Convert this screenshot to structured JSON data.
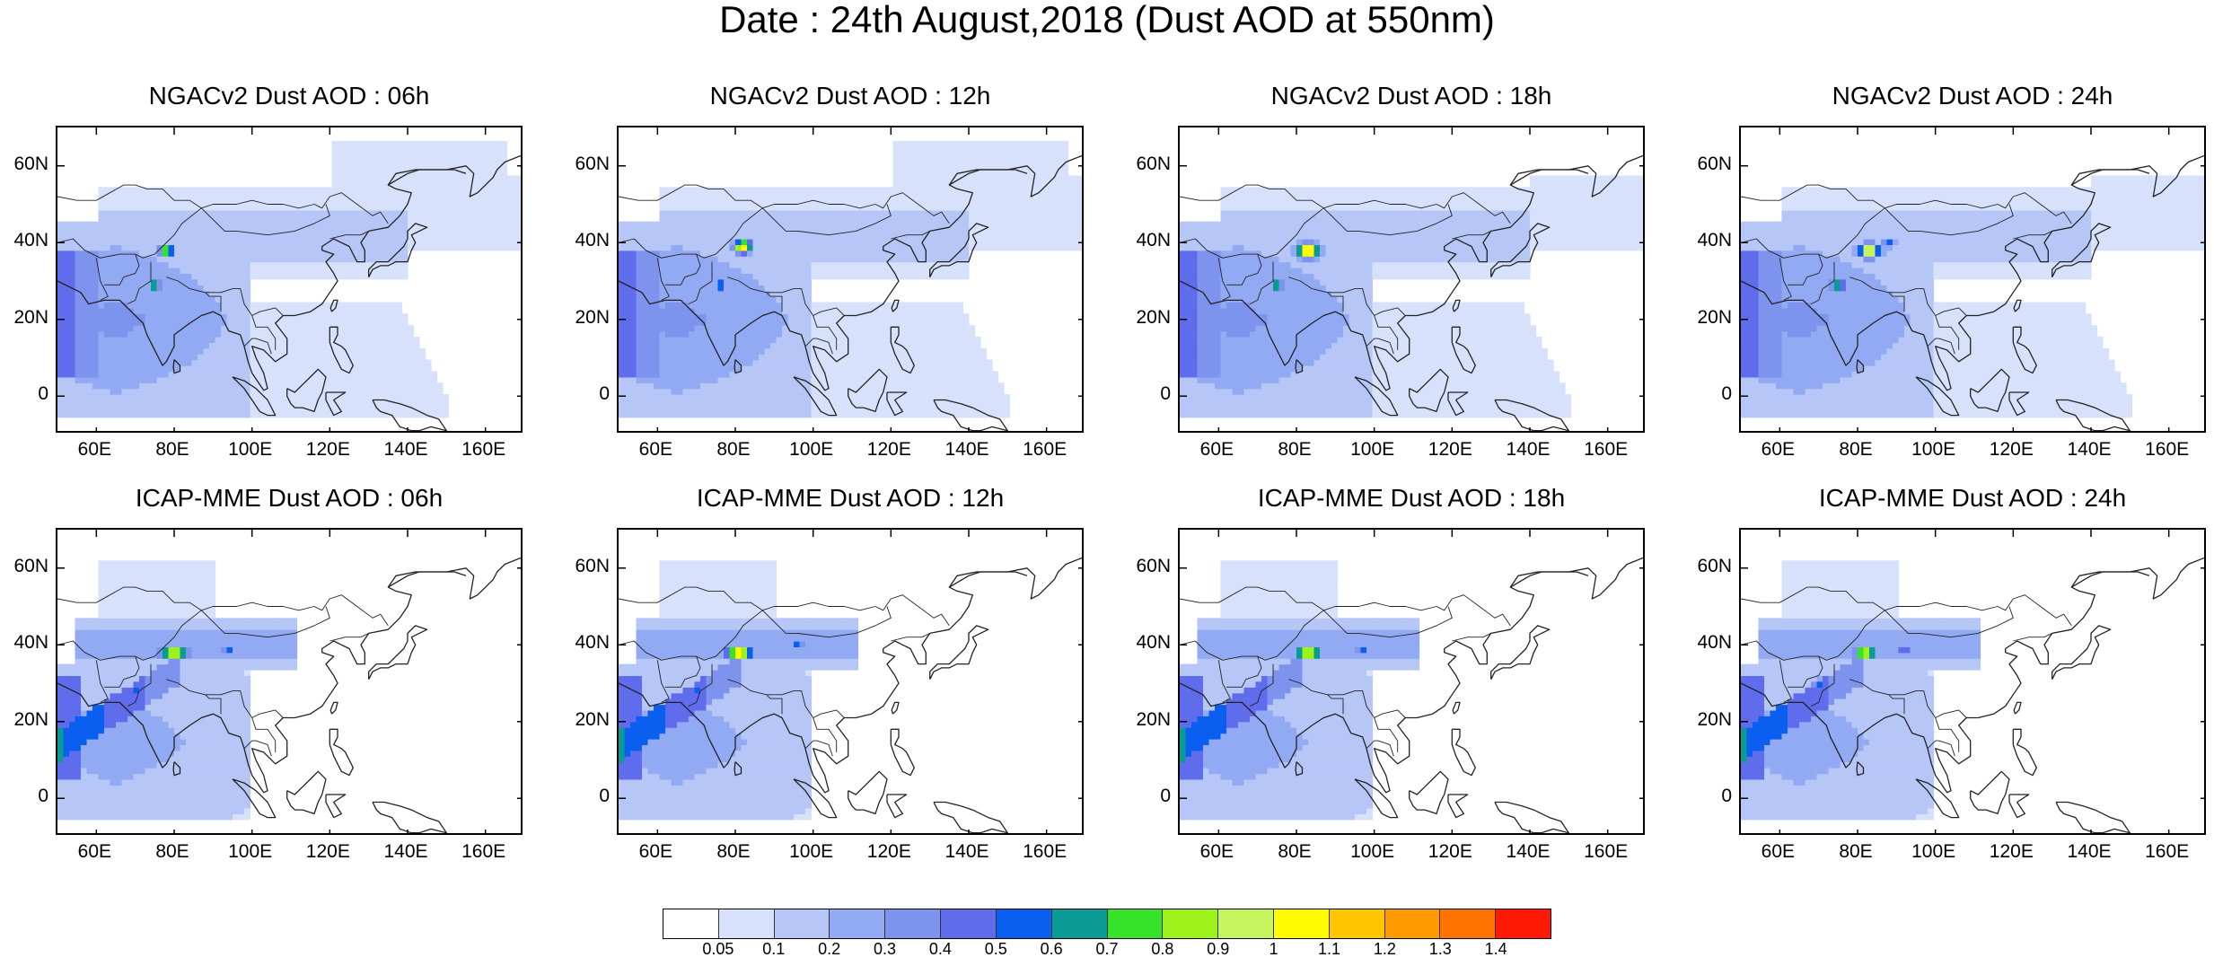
{
  "figure": {
    "title": "Date : 24th August,2018 (Dust AOD at 550nm)"
  },
  "panels": [
    {
      "title": "NGACv2 Dust AOD : 06h",
      "model": "NGACv2",
      "hour": "06h"
    },
    {
      "title": "NGACv2 Dust AOD : 12h",
      "model": "NGACv2",
      "hour": "12h"
    },
    {
      "title": "NGACv2 Dust AOD : 18h",
      "model": "NGACv2",
      "hour": "18h"
    },
    {
      "title": "NGACv2 Dust AOD : 24h",
      "model": "NGACv2",
      "hour": "24h"
    },
    {
      "title": "ICAP-MME Dust AOD : 06h",
      "model": "ICAP-MME",
      "hour": "06h"
    },
    {
      "title": "ICAP-MME Dust AOD : 12h",
      "model": "ICAP-MME",
      "hour": "12h"
    },
    {
      "title": "ICAP-MME Dust AOD : 18h",
      "model": "ICAP-MME",
      "hour": "18h"
    },
    {
      "title": "ICAP-MME Dust AOD : 24h",
      "model": "ICAP-MME",
      "hour": "24h"
    }
  ],
  "axes": {
    "lat_ticks": [
      "60N",
      "40N",
      "20N",
      "0"
    ],
    "lon_ticks": [
      "60E",
      "80E",
      "100E",
      "120E",
      "140E",
      "160E"
    ],
    "lat_values": [
      60,
      40,
      20,
      0
    ],
    "lon_values": [
      60,
      80,
      100,
      120,
      140,
      160
    ],
    "lat_range": [
      -10,
      70
    ],
    "lon_range": [
      50,
      170
    ]
  },
  "colorbar": {
    "labels": [
      "0.05",
      "0.1",
      "0.2",
      "0.3",
      "0.4",
      "0.5",
      "0.6",
      "0.7",
      "0.8",
      "0.9",
      "1",
      "1.1",
      "1.2",
      "1.3",
      "1.4"
    ],
    "colors": [
      "#ffffff",
      "#d7e1fb",
      "#b5c6f7",
      "#92aaf3",
      "#7e93ee",
      "#5f6cec",
      "#0a5ef0",
      "#0a9b94",
      "#37e22b",
      "#9cf21a",
      "#c5f45e",
      "#fffb00",
      "#ffc500",
      "#ff9a00",
      "#ff7400",
      "#ff1a06"
    ]
  },
  "fields": {
    "ngac_levels": [
      {
        "spots": [
          [
            78,
            38,
            2.0,
            1.5,
            0.95
          ],
          [
            75,
            29,
            1.5,
            1.5,
            0.8
          ]
        ]
      },
      {
        "spots": [
          [
            82,
            39,
            2.5,
            2.0,
            1.05
          ],
          [
            76,
            29,
            1.5,
            1.5,
            0.7
          ]
        ]
      },
      {
        "spots": [
          [
            83,
            38,
            3.0,
            2.0,
            1.25
          ],
          [
            75,
            29,
            1.5,
            1.5,
            0.9
          ]
        ]
      },
      {
        "spots": [
          [
            83,
            38,
            3.0,
            2.0,
            1.2
          ],
          [
            75,
            29,
            2.0,
            1.5,
            0.85
          ],
          [
            88,
            40,
            2.0,
            1.5,
            0.55
          ]
        ]
      }
    ],
    "icap_levels": [
      {
        "spots": [
          [
            80,
            38,
            4.0,
            1.5,
            1.1
          ],
          [
            94,
            39,
            2.0,
            1.5,
            0.6
          ],
          [
            70,
            28,
            2.0,
            1.5,
            0.6
          ]
        ]
      },
      {
        "spots": [
          [
            81,
            38,
            3.5,
            1.5,
            1.3
          ],
          [
            96,
            40,
            2.0,
            1.5,
            0.6
          ],
          [
            70,
            28,
            2.0,
            1.5,
            0.6
          ]
        ]
      },
      {
        "spots": [
          [
            83,
            38,
            3.5,
            1.5,
            1.2
          ],
          [
            97,
            39,
            2.0,
            1.5,
            0.6
          ],
          [
            68,
            27,
            2.0,
            1.5,
            0.55
          ]
        ]
      },
      {
        "spots": [
          [
            82,
            38,
            3.0,
            1.5,
            1.15
          ],
          [
            92,
            39,
            2.0,
            1.5,
            0.55
          ],
          [
            70,
            30,
            2.0,
            1.5,
            0.55
          ]
        ]
      }
    ]
  }
}
